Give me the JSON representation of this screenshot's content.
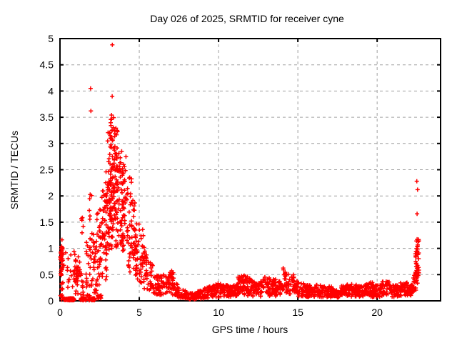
{
  "window": {
    "title": "Day 026 of 2025, SRMTID for receiver cyne"
  },
  "chart_data": {
    "type": "scatter",
    "title": "Day 026 of 2025, SRMTID for receiver cyne",
    "xlabel": "GPS time / hours",
    "ylabel": "SRMTID / TECUs",
    "xlim": [
      0,
      24
    ],
    "ylim": [
      0,
      5
    ],
    "xticks": [
      0,
      5,
      10,
      15,
      20
    ],
    "xtick_labels": [
      "0",
      "5",
      "10",
      "15",
      "20"
    ],
    "yticks": [
      0,
      0.5,
      1,
      1.5,
      2,
      2.5,
      3,
      3.5,
      4,
      4.5,
      5
    ],
    "ytick_labels": [
      "0",
      "0.5",
      "1",
      "1.5",
      "2",
      "2.5",
      "3",
      "3.5",
      "4",
      "4.5",
      "5"
    ],
    "grid": "dashed",
    "grid_color": "#a0a0a0",
    "border_color": "#000000",
    "legend": "none",
    "marker": "plus",
    "marker_color": "#ff0000",
    "seed": 26,
    "outlier_points": [
      [
        1.93,
        4.05
      ],
      [
        1.95,
        3.62
      ],
      [
        3.3,
        4.88
      ],
      [
        3.29,
        3.9
      ],
      [
        22.5,
        2.28
      ],
      [
        22.55,
        2.12
      ],
      [
        22.52,
        1.66
      ]
    ],
    "bands_format": "x_start, x_end, yLow_at_start, yHigh_at_start, yLow_at_end, yHigh_at_end, point_count",
    "density_bands": [
      [
        0.03,
        0.18,
        0.02,
        1.18,
        0.02,
        1.18,
        40
      ],
      [
        0.05,
        0.15,
        0.55,
        1.05,
        0.55,
        1.05,
        16
      ],
      [
        0.2,
        0.95,
        0.25,
        0.95,
        0.25,
        0.95,
        18
      ],
      [
        0.25,
        0.9,
        0.01,
        0.05,
        0.01,
        0.05,
        65
      ],
      [
        0.9,
        1.25,
        0.05,
        0.85,
        0.05,
        0.85,
        20
      ],
      [
        0.95,
        1.2,
        0.3,
        0.8,
        0.3,
        0.8,
        10
      ],
      [
        1.25,
        1.65,
        0.05,
        0.6,
        0.05,
        0.6,
        16
      ],
      [
        1.3,
        1.65,
        0.01,
        0.05,
        0.01,
        0.05,
        26
      ],
      [
        1.35,
        1.55,
        1.15,
        1.6,
        1.15,
        1.6,
        5
      ],
      [
        1.65,
        2.3,
        0.05,
        1.3,
        0.05,
        1.3,
        50
      ],
      [
        1.8,
        2.2,
        0.01,
        0.05,
        0.01,
        0.05,
        36
      ],
      [
        1.85,
        2.05,
        1.4,
        2.05,
        1.4,
        2.05,
        6
      ],
      [
        2.1,
        2.65,
        1.4,
        1.75,
        1.4,
        1.75,
        8
      ],
      [
        2.3,
        2.95,
        0.25,
        1.45,
        0.25,
        1.45,
        50
      ],
      [
        2.35,
        2.6,
        0.03,
        0.12,
        0.03,
        0.12,
        12
      ],
      [
        2.6,
        3.0,
        1.2,
        2.1,
        1.2,
        2.1,
        22
      ],
      [
        2.85,
        3.25,
        0.9,
        2.6,
        0.9,
        2.6,
        40
      ],
      [
        3.0,
        3.65,
        1.3,
        3.3,
        1.3,
        3.3,
        85
      ],
      [
        3.1,
        3.6,
        2.9,
        3.55,
        2.9,
        3.55,
        14
      ],
      [
        3.2,
        4.1,
        1.0,
        2.6,
        1.0,
        2.6,
        75
      ],
      [
        3.6,
        4.25,
        0.9,
        2.9,
        0.9,
        2.9,
        50
      ],
      [
        4.2,
        4.75,
        0.55,
        2.2,
        0.5,
        1.9,
        50
      ],
      [
        4.35,
        4.55,
        2.2,
        2.55,
        2.2,
        2.55,
        4
      ],
      [
        4.7,
        5.3,
        0.4,
        1.8,
        0.3,
        1.3,
        55
      ],
      [
        5.3,
        5.85,
        0.2,
        1.05,
        0.15,
        0.75,
        42
      ],
      [
        5.85,
        6.5,
        0.12,
        0.6,
        0.1,
        0.45,
        42
      ],
      [
        6.5,
        6.9,
        0.1,
        0.5,
        0.1,
        0.45,
        28
      ],
      [
        6.9,
        7.2,
        0.12,
        0.62,
        0.1,
        0.55,
        26
      ],
      [
        7.2,
        7.5,
        0.08,
        0.45,
        0.05,
        0.25,
        20
      ],
      [
        7.5,
        8.1,
        0.04,
        0.25,
        0.03,
        0.18,
        38
      ],
      [
        8.1,
        8.6,
        0.03,
        0.15,
        0.03,
        0.15,
        34
      ],
      [
        8.6,
        9.1,
        0.04,
        0.2,
        0.04,
        0.2,
        32
      ],
      [
        9.1,
        9.8,
        0.05,
        0.25,
        0.06,
        0.3,
        48
      ],
      [
        9.8,
        10.35,
        0.07,
        0.35,
        0.07,
        0.3,
        42
      ],
      [
        10.35,
        11.2,
        0.07,
        0.3,
        0.08,
        0.32,
        62
      ],
      [
        11.2,
        11.8,
        0.1,
        0.45,
        0.12,
        0.52,
        50
      ],
      [
        11.8,
        12.2,
        0.1,
        0.48,
        0.08,
        0.4,
        32
      ],
      [
        12.2,
        12.8,
        0.08,
        0.4,
        0.08,
        0.38,
        42
      ],
      [
        12.8,
        13.6,
        0.1,
        0.48,
        0.08,
        0.42,
        56
      ],
      [
        13.6,
        14.05,
        0.08,
        0.35,
        0.1,
        0.4,
        30
      ],
      [
        14.05,
        14.75,
        0.15,
        0.67,
        0.1,
        0.5,
        52
      ],
      [
        14.75,
        15.4,
        0.08,
        0.4,
        0.08,
        0.33,
        45
      ],
      [
        15.4,
        16.0,
        0.07,
        0.3,
        0.07,
        0.3,
        44
      ],
      [
        16.0,
        16.6,
        0.07,
        0.33,
        0.07,
        0.33,
        44
      ],
      [
        16.6,
        17.2,
        0.06,
        0.28,
        0.06,
        0.28,
        44
      ],
      [
        17.2,
        17.7,
        0.05,
        0.22,
        0.05,
        0.22,
        34
      ],
      [
        17.7,
        18.1,
        0.07,
        0.3,
        0.07,
        0.3,
        30
      ],
      [
        18.1,
        18.7,
        0.08,
        0.33,
        0.08,
        0.33,
        44
      ],
      [
        18.7,
        19.2,
        0.07,
        0.28,
        0.07,
        0.28,
        37
      ],
      [
        19.2,
        19.7,
        0.08,
        0.35,
        0.08,
        0.35,
        37
      ],
      [
        19.7,
        20.3,
        0.07,
        0.3,
        0.07,
        0.3,
        44
      ],
      [
        20.3,
        20.8,
        0.1,
        0.38,
        0.1,
        0.38,
        37
      ],
      [
        20.8,
        21.4,
        0.07,
        0.3,
        0.07,
        0.3,
        44
      ],
      [
        21.4,
        21.9,
        0.08,
        0.35,
        0.08,
        0.35,
        37
      ],
      [
        21.9,
        22.15,
        0.1,
        0.3,
        0.1,
        0.3,
        20
      ],
      [
        22.15,
        22.45,
        0.12,
        0.3,
        0.2,
        0.6,
        24
      ],
      [
        22.4,
        22.65,
        0.3,
        0.9,
        0.35,
        1.28,
        34
      ],
      [
        22.45,
        22.62,
        0.9,
        1.28,
        0.9,
        1.28,
        12
      ]
    ]
  }
}
